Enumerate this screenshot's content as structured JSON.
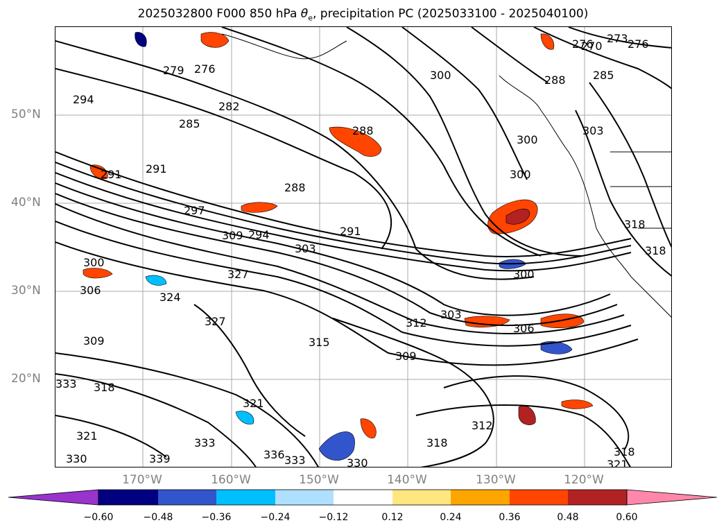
{
  "title": "2025032800 F000 850 hPa θe, precipitation PC (2025033100 - 2025040100)",
  "title_main": "2025032800 F000 850 hPa ",
  "title_symbol": "θ",
  "title_sub": "e",
  "title_rest": ", precipitation PC (2025033100 - 2025040100)",
  "lat_labels": [
    "50°N",
    "40°N",
    "30°N",
    "20°N"
  ],
  "lon_labels": [
    "170°W",
    "160°W",
    "150°W",
    "140°W",
    "130°W",
    "120°W"
  ],
  "contour_labels": [
    "270",
    "276",
    "273",
    "276",
    "279",
    "276",
    "294",
    "282",
    "285",
    "288",
    "291",
    "291",
    "288",
    "297",
    "294",
    "300",
    "303",
    "309",
    "291",
    "300",
    "300",
    "303",
    "288",
    "285",
    "300",
    "306",
    "303",
    "300",
    "309",
    "312",
    "306",
    "318",
    "318",
    "327",
    "324",
    "327",
    "321",
    "315",
    "309",
    "318",
    "333",
    "321",
    "318",
    "312",
    "318",
    "321",
    "333",
    "339",
    "330",
    "333",
    "336",
    "330"
  ],
  "colorbar": {
    "tick_labels": [
      "−0.60",
      "−0.48",
      "−0.36",
      "−0.24",
      "−0.12",
      "0.12",
      "0.24",
      "0.36",
      "0.48",
      "0.60"
    ],
    "colors": [
      "#9933cc",
      "#000080",
      "#3355cc",
      "#00bfff",
      "#b0e0ff",
      "#ffffff",
      "#ffe680",
      "#ffa500",
      "#ff4500",
      "#b22222",
      "#ff88aa"
    ]
  }
}
